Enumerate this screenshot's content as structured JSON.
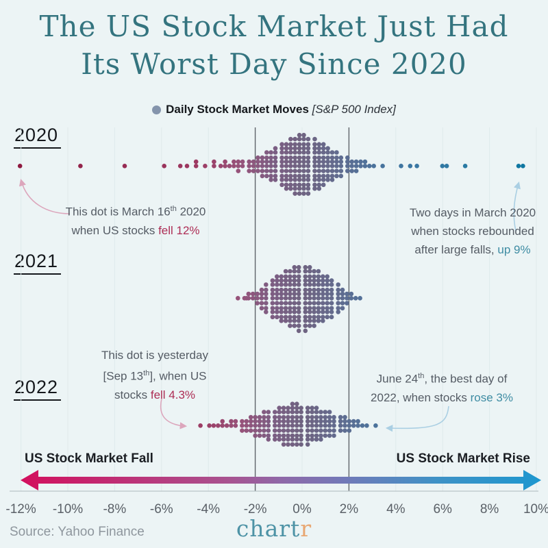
{
  "title": {
    "line1": "The US Stock Market Just Had",
    "line2": "Its Worst Day Since 2020"
  },
  "legend": {
    "dot_color": "#8494ac",
    "label": "Daily Stock Market Moves",
    "sublabel": "[S&P 500 Index]"
  },
  "years": [
    {
      "label": "2020"
    },
    {
      "label": "2021"
    },
    {
      "label": "2022"
    }
  ],
  "axis": {
    "ticks": [
      "-12%",
      "-10%",
      "-8%",
      "-6%",
      "-4%",
      "-2%",
      "0%",
      "2%",
      "4%",
      "6%",
      "8%",
      "10%"
    ],
    "tick_values_pct": [
      -12,
      -10,
      -8,
      -6,
      -4,
      -2,
      0,
      2,
      4,
      6,
      8,
      10
    ],
    "reference_lines_pct": [
      -2,
      2
    ]
  },
  "annotations": [
    {
      "id": "anno-2020-worst",
      "lines": [
        [
          {
            "t": "This dot is March 16"
          },
          {
            "t": "th",
            "sup": true
          },
          {
            "t": " 2020"
          }
        ],
        [
          {
            "t": "when US stocks "
          },
          {
            "t": "fell 12%",
            "color": "#ad2d55"
          }
        ]
      ]
    },
    {
      "id": "anno-2020-rebound",
      "lines": [
        [
          {
            "t": "Two days in March 2020"
          }
        ],
        [
          {
            "t": "when stocks rebounded"
          }
        ],
        [
          {
            "t": "after large falls, "
          },
          {
            "t": "up 9%",
            "color": "#3e8ca3"
          }
        ]
      ]
    },
    {
      "id": "anno-2022-yesterday",
      "lines": [
        [
          {
            "t": "This dot is yesterday"
          }
        ],
        [
          {
            "t": "[Sep 13"
          },
          {
            "t": "th",
            "sup": true
          },
          {
            "t": "], when US"
          }
        ],
        [
          {
            "t": "stocks "
          },
          {
            "t": "fell 4.3%",
            "color": "#ad2d55"
          }
        ]
      ]
    },
    {
      "id": "anno-2022-best",
      "lines": [
        [
          {
            "t": "June 24"
          },
          {
            "t": "th",
            "sup": true
          },
          {
            "t": ", the best day of"
          }
        ],
        [
          {
            "t": "2022, when stocks "
          },
          {
            "t": "rose 3%",
            "color": "#3e8ca3"
          }
        ]
      ]
    }
  ],
  "footer": {
    "fall_label": "US Stock Market Fall",
    "rise_label": "US Stock Market Rise",
    "source": "Source: Yahoo Finance",
    "logo": {
      "main": "chart",
      "accent": "r",
      "main_color": "#4e93a6",
      "accent_color": "#e8a772"
    }
  },
  "chart_data": {
    "type": "beeswarm",
    "title": "The US Stock Market Just Had Its Worst Day Since 2020",
    "legend": "Daily Stock Market Moves [S&P 500 Index]",
    "x_unit": "daily % move",
    "x_range_pct": [
      -12,
      10
    ],
    "x_ticks_pct": [
      -12,
      -10,
      -8,
      -6,
      -4,
      -2,
      0,
      2,
      4,
      6,
      8,
      10
    ],
    "reference_lines_pct": [
      -2,
      2
    ],
    "series": [
      {
        "name": "2020",
        "bins_pct_count": [
          [
            -12,
            1
          ],
          [
            -9.5,
            1
          ],
          [
            -7.6,
            1
          ],
          [
            -5.9,
            1
          ],
          [
            -5.2,
            1
          ],
          [
            -4.9,
            1
          ],
          [
            -4.5,
            2
          ],
          [
            -4.1,
            1
          ],
          [
            -3.8,
            2
          ],
          [
            -3.5,
            1
          ],
          [
            -3.3,
            2
          ],
          [
            -3.1,
            1
          ],
          [
            -2.9,
            2
          ],
          [
            -2.7,
            3
          ],
          [
            -2.5,
            2
          ],
          [
            -2.3,
            3
          ],
          [
            -2.1,
            3
          ],
          [
            -1.9,
            4
          ],
          [
            -1.7,
            5
          ],
          [
            -1.5,
            6
          ],
          [
            -1.3,
            7
          ],
          [
            -1.1,
            8
          ],
          [
            -0.9,
            10
          ],
          [
            -0.7,
            11
          ],
          [
            -0.5,
            12
          ],
          [
            -0.3,
            13
          ],
          [
            -0.1,
            14
          ],
          [
            0.1,
            14
          ],
          [
            0.3,
            13
          ],
          [
            0.5,
            12
          ],
          [
            0.7,
            11
          ],
          [
            0.9,
            10
          ],
          [
            1.1,
            8
          ],
          [
            1.3,
            7
          ],
          [
            1.5,
            6
          ],
          [
            1.7,
            5
          ],
          [
            1.9,
            4
          ],
          [
            2.1,
            3
          ],
          [
            2.3,
            3
          ],
          [
            2.5,
            2
          ],
          [
            2.7,
            2
          ],
          [
            2.9,
            1
          ],
          [
            3.1,
            1
          ],
          [
            3.4,
            1
          ],
          [
            4.2,
            1
          ],
          [
            4.6,
            1
          ],
          [
            4.9,
            1
          ],
          [
            6.0,
            1
          ],
          [
            6.2,
            1
          ],
          [
            7.0,
            1
          ],
          [
            9.2,
            1
          ],
          [
            9.4,
            1
          ]
        ],
        "notable_points": [
          {
            "pct": -12,
            "label": "March 16th 2020: US stocks fell 12%"
          },
          {
            "pct": 9.3,
            "label": "Two days in March 2020 rebounded up 9% after large falls"
          }
        ]
      },
      {
        "name": "2021",
        "bins_pct_count": [
          [
            -2.7,
            1
          ],
          [
            -2.5,
            1
          ],
          [
            -2.4,
            1
          ],
          [
            -2.3,
            2
          ],
          [
            -2.1,
            2
          ],
          [
            -1.9,
            3
          ],
          [
            -1.7,
            5
          ],
          [
            -1.5,
            7
          ],
          [
            -1.3,
            9
          ],
          [
            -1.1,
            10
          ],
          [
            -0.9,
            11
          ],
          [
            -0.7,
            12
          ],
          [
            -0.5,
            13
          ],
          [
            -0.3,
            14
          ],
          [
            -0.1,
            15
          ],
          [
            0.1,
            15
          ],
          [
            0.3,
            14
          ],
          [
            0.5,
            13
          ],
          [
            0.7,
            12
          ],
          [
            0.9,
            11
          ],
          [
            1.1,
            10
          ],
          [
            1.3,
            9
          ],
          [
            1.5,
            7
          ],
          [
            1.7,
            5
          ],
          [
            1.9,
            3
          ],
          [
            2.1,
            2
          ],
          [
            2.3,
            1
          ],
          [
            2.5,
            1
          ]
        ],
        "notable_points": []
      },
      {
        "name": "2022",
        "bins_pct_count": [
          [
            -4.3,
            1
          ],
          [
            -4.0,
            1
          ],
          [
            -3.8,
            1
          ],
          [
            -3.6,
            1
          ],
          [
            -3.4,
            2
          ],
          [
            -3.2,
            1
          ],
          [
            -3.0,
            2
          ],
          [
            -2.8,
            2
          ],
          [
            -2.6,
            3
          ],
          [
            -2.4,
            3
          ],
          [
            -2.2,
            4
          ],
          [
            -2.0,
            5
          ],
          [
            -1.8,
            5
          ],
          [
            -1.6,
            6
          ],
          [
            -1.4,
            7
          ],
          [
            -1.2,
            7
          ],
          [
            -1.0,
            8
          ],
          [
            -0.8,
            9
          ],
          [
            -0.6,
            9
          ],
          [
            -0.4,
            10
          ],
          [
            -0.2,
            10
          ],
          [
            0.0,
            9
          ],
          [
            0.2,
            9
          ],
          [
            0.4,
            8
          ],
          [
            0.6,
            8
          ],
          [
            0.8,
            7
          ],
          [
            1.0,
            6
          ],
          [
            1.2,
            6
          ],
          [
            1.4,
            5
          ],
          [
            1.6,
            4
          ],
          [
            1.8,
            4
          ],
          [
            2.0,
            3
          ],
          [
            2.2,
            2
          ],
          [
            2.4,
            2
          ],
          [
            2.6,
            1
          ],
          [
            2.8,
            1
          ],
          [
            3.1,
            1
          ]
        ],
        "notable_points": [
          {
            "pct": -4.3,
            "label": "Yesterday [Sep 13th]: US stocks fell 4.3%"
          },
          {
            "pct": 3,
            "label": "June 24th, the best day of 2022: stocks rose 3%"
          }
        ]
      }
    ],
    "color_stops": [
      [
        -12,
        "#8e1940"
      ],
      [
        -4.5,
        "#9d3a62"
      ],
      [
        -2.6,
        "#96537a"
      ],
      [
        -1.2,
        "#7b5e83"
      ],
      [
        0,
        "#6f6381"
      ],
      [
        1.2,
        "#65698b"
      ],
      [
        2.4,
        "#547097"
      ],
      [
        3.6,
        "#44739e"
      ],
      [
        5,
        "#3877a3"
      ],
      [
        7,
        "#2a7aa3"
      ],
      [
        9,
        "#0f77a1"
      ],
      [
        10,
        "#0f77a1"
      ]
    ],
    "gradient_arrow": {
      "left_color": "#d30f5d",
      "mid_color": "#8f68a8",
      "right_color": "#1d97cf"
    }
  }
}
